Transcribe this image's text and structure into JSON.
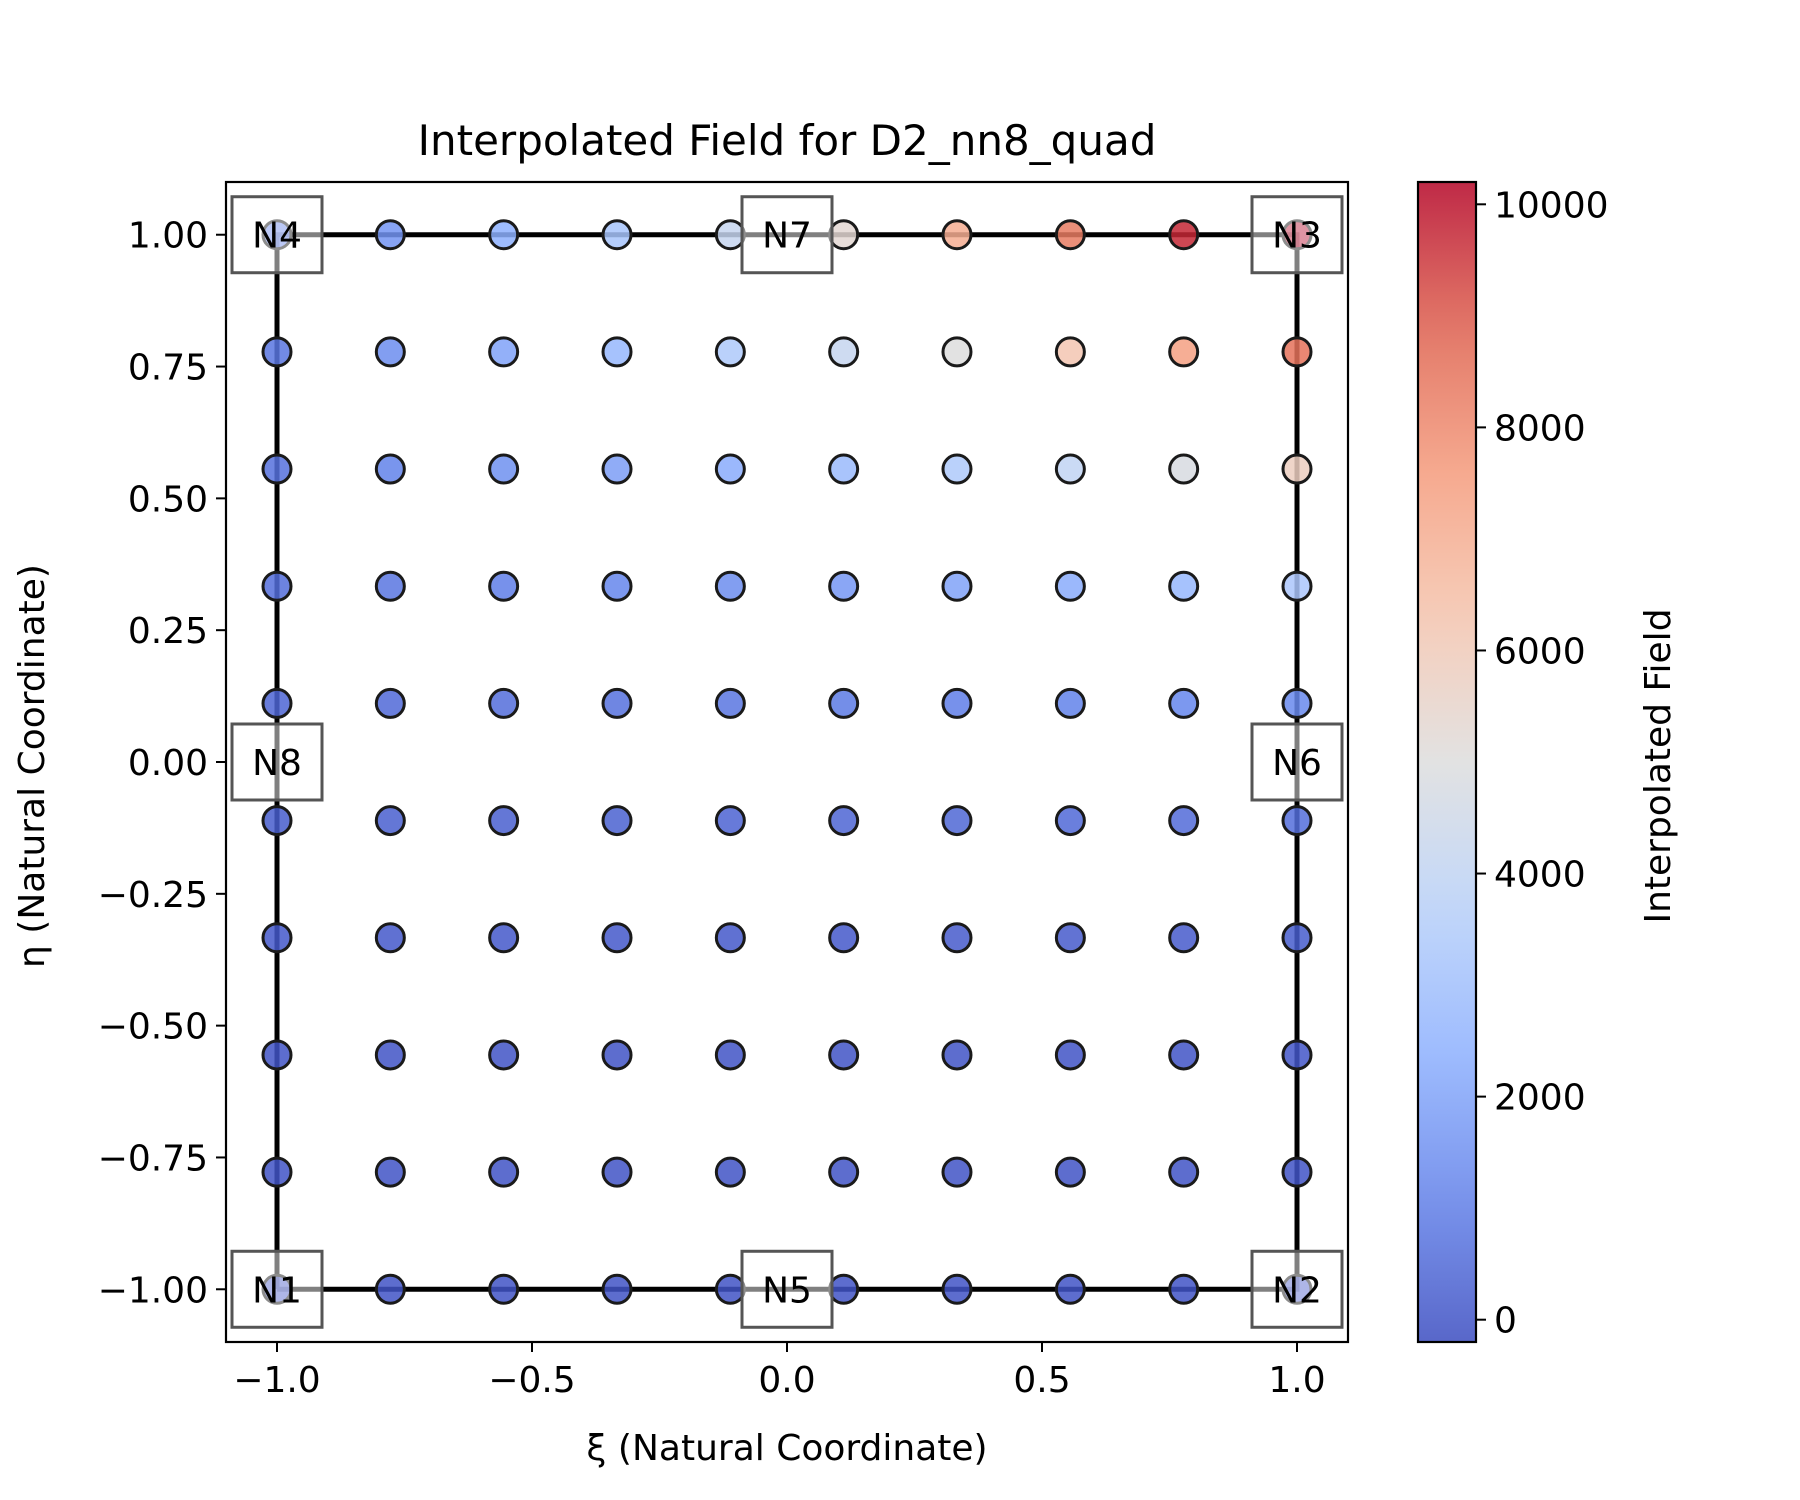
{
  "chart_data": {
    "type": "scatter",
    "title": "Interpolated Field for D2_nn8_quad",
    "xlabel": "ξ (Natural Coordinate)",
    "ylabel": "η (Natural Coordinate)",
    "xlim": [
      -1.1,
      1.1
    ],
    "ylim": [
      -1.1,
      1.1
    ],
    "x_ticks": [
      "−1.0",
      "−0.5",
      "0.0",
      "0.5",
      "1.0"
    ],
    "x_tick_values": [
      -1.0,
      -0.5,
      0.0,
      0.5,
      1.0
    ],
    "y_ticks": [
      "−1.00",
      "−0.75",
      "−0.50",
      "−0.25",
      "0.00",
      "0.25",
      "0.50",
      "0.75",
      "1.00"
    ],
    "y_tick_values": [
      -1.0,
      -0.75,
      -0.5,
      -0.25,
      0.0,
      0.25,
      0.5,
      0.75,
      1.0
    ],
    "grid": false,
    "colormap": "coolwarm",
    "colorbar": {
      "label": "Interpolated Field",
      "range": [
        -200,
        10200
      ],
      "ticks": [
        "0",
        "2000",
        "4000",
        "6000",
        "8000",
        "10000"
      ],
      "tick_values": [
        0,
        2000,
        4000,
        6000,
        8000,
        10000
      ]
    },
    "grid_points": {
      "xi": [
        -1.0,
        -0.7778,
        -0.5556,
        -0.3333,
        -0.1111,
        0.1111,
        0.3333,
        0.5556,
        0.7778,
        1.0
      ],
      "eta": [
        -1.0,
        -0.7778,
        -0.5556,
        -0.3333,
        -0.1111,
        0.1111,
        0.3333,
        0.5556,
        0.7778,
        1.0
      ],
      "values": [
        [
          0,
          0,
          0,
          0,
          0,
          0,
          0,
          0,
          0,
          0
        ],
        [
          0,
          0,
          0,
          0,
          0,
          0,
          0,
          0,
          0,
          0
        ],
        [
          0,
          0,
          0,
          0,
          0,
          0,
          0,
          0,
          0,
          50
        ],
        [
          100,
          100,
          100,
          100,
          100,
          100,
          150,
          150,
          150,
          200
        ],
        [
          200,
          250,
          250,
          300,
          350,
          400,
          450,
          500,
          550,
          600
        ],
        [
          400,
          500,
          600,
          700,
          800,
          900,
          1000,
          1100,
          1200,
          1300
        ],
        [
          600,
          800,
          1000,
          1200,
          1400,
          1700,
          2000,
          2300,
          2700,
          3300
        ],
        [
          700,
          1100,
          1500,
          1900,
          2300,
          2800,
          3400,
          4000,
          4800,
          5800
        ],
        [
          800,
          1400,
          2000,
          2700,
          3400,
          4200,
          5000,
          6200,
          7400,
          8500
        ],
        [
          1000,
          1600,
          2400,
          3200,
          4200,
          5300,
          7000,
          8300,
          9700,
          10200
        ]
      ]
    },
    "nodes": [
      {
        "label": "N1",
        "xi": -1.0,
        "eta": -1.0
      },
      {
        "label": "N2",
        "xi": 1.0,
        "eta": -1.0
      },
      {
        "label": "N3",
        "xi": 1.0,
        "eta": 1.0
      },
      {
        "label": "N4",
        "xi": -1.0,
        "eta": 1.0
      },
      {
        "label": "N5",
        "xi": 0.0,
        "eta": -1.0
      },
      {
        "label": "N6",
        "xi": 1.0,
        "eta": 0.0
      },
      {
        "label": "N7",
        "xi": 0.0,
        "eta": 1.0
      },
      {
        "label": "N8",
        "xi": -1.0,
        "eta": 0.0
      }
    ]
  }
}
